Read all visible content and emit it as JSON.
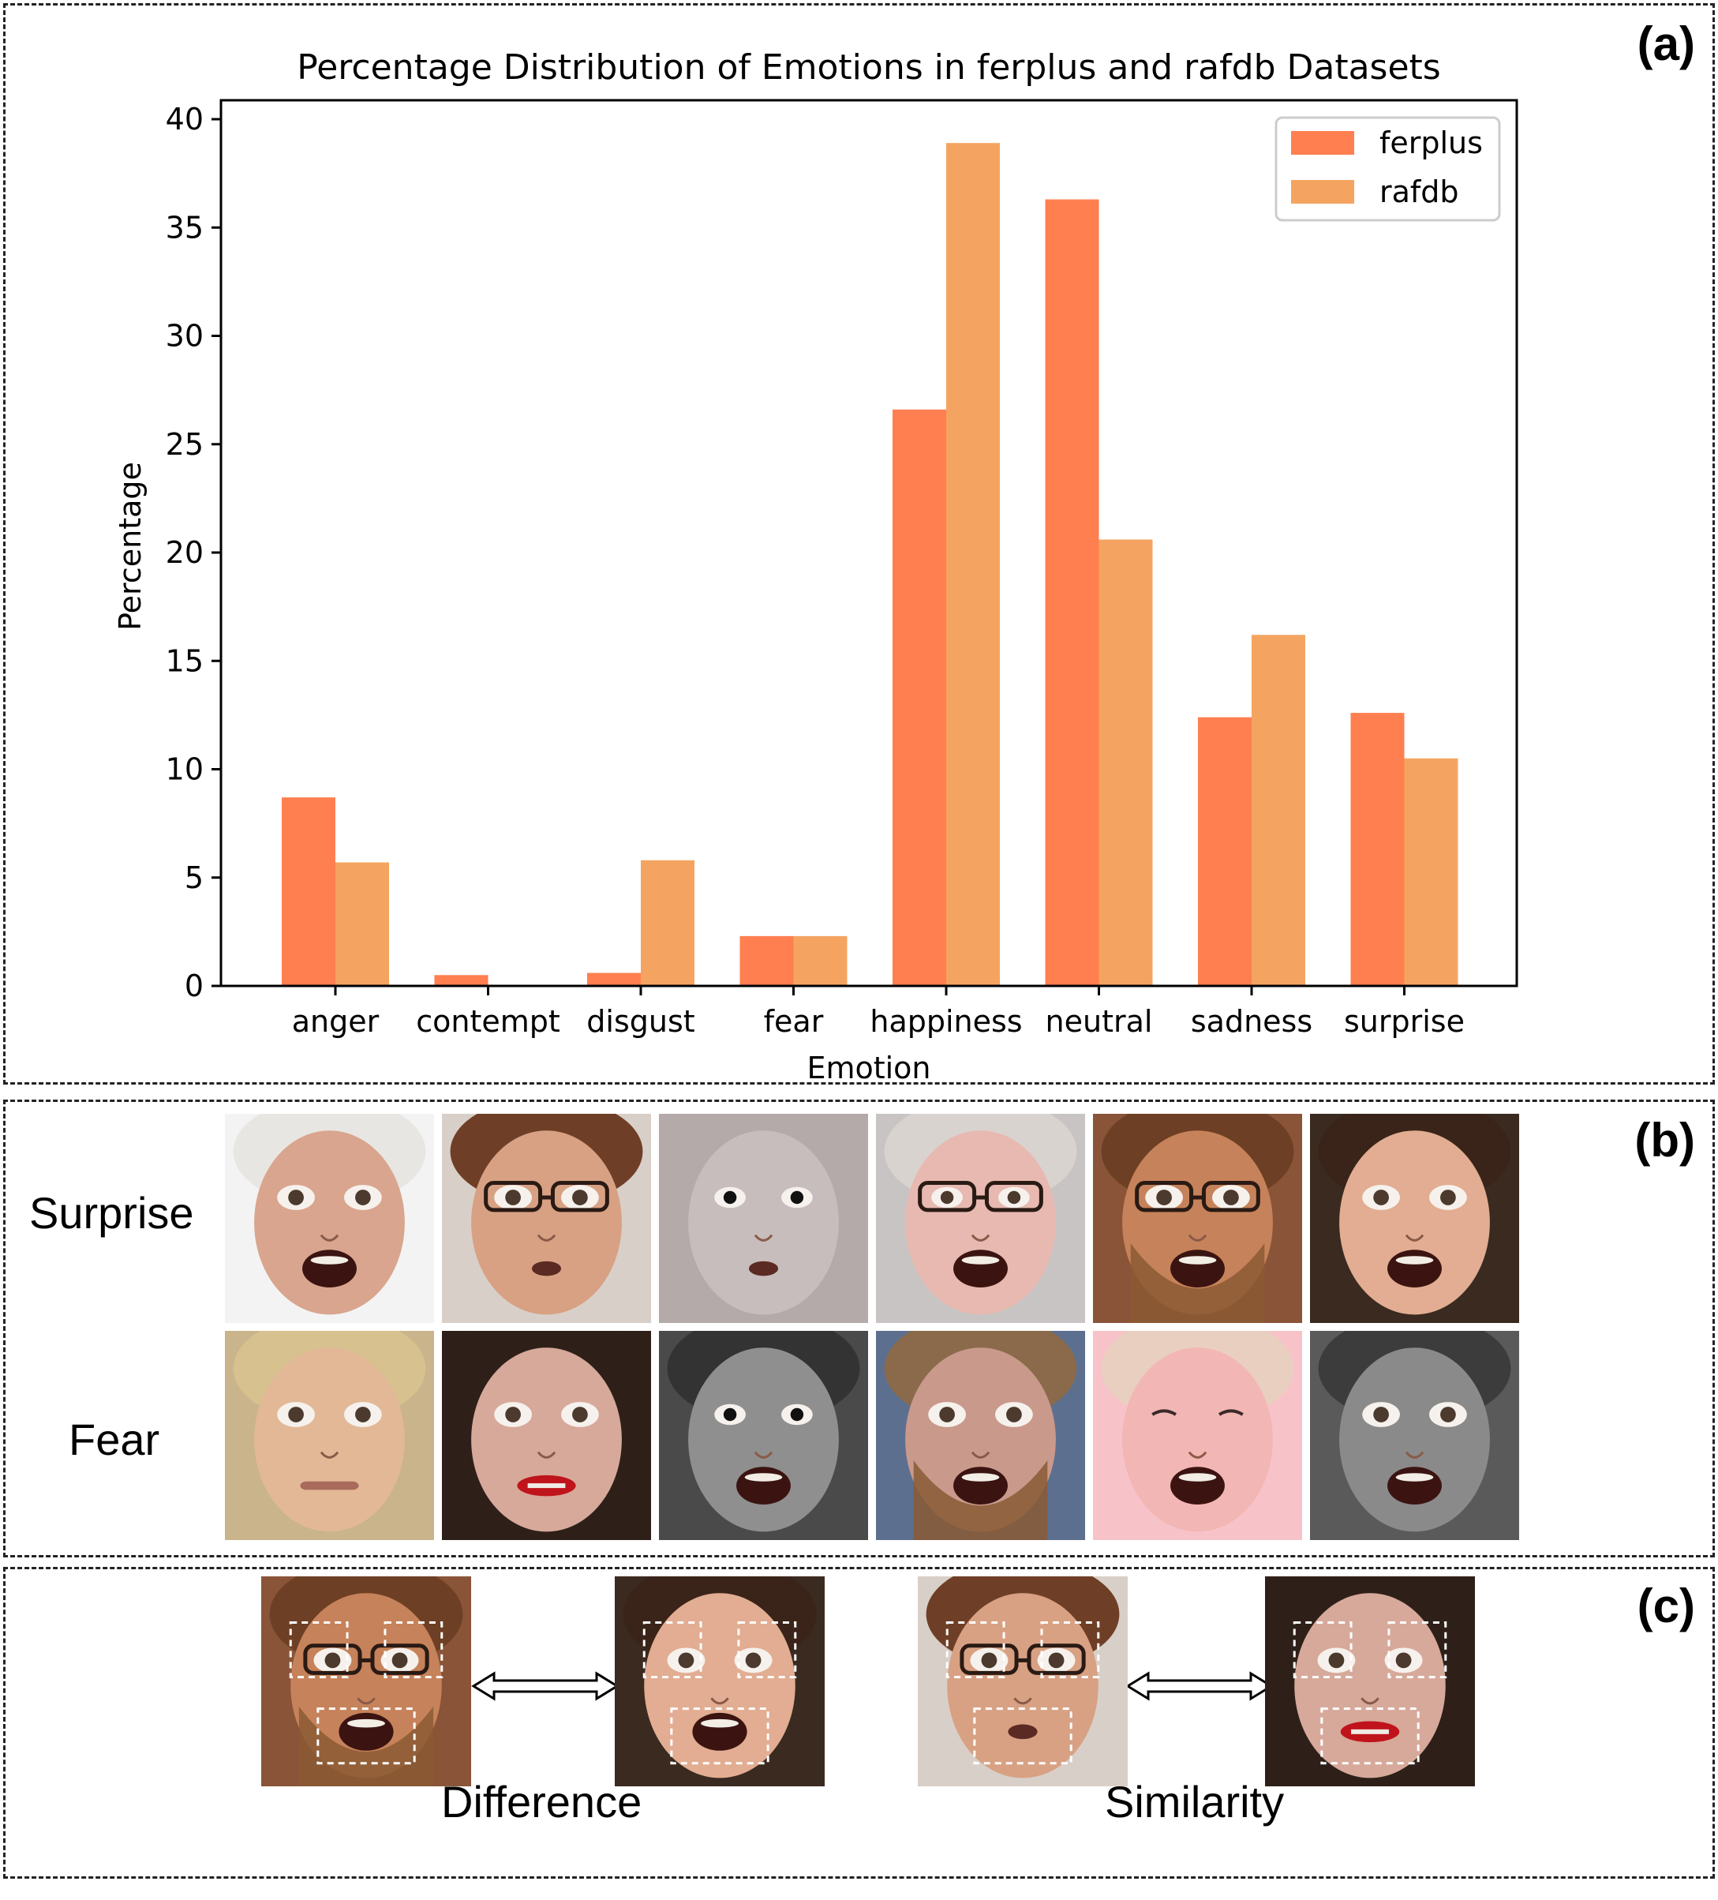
{
  "panels": {
    "a": {
      "label": "(a)"
    },
    "b": {
      "label": "(b)",
      "rows": [
        "Surprise",
        "Fear"
      ]
    },
    "c": {
      "label": "(c)",
      "captions": [
        "Difference",
        "Similarity"
      ]
    }
  },
  "chart_data": {
    "type": "bar",
    "title": "Percentage Distribution of Emotions in ferplus and rafdb Datasets",
    "xlabel": "Emotion",
    "ylabel": "Percentage",
    "ylim": [
      0,
      41
    ],
    "yticks": [
      0,
      5,
      10,
      15,
      20,
      25,
      30,
      35,
      40
    ],
    "categories": [
      "anger",
      "contempt",
      "disgust",
      "fear",
      "happiness",
      "neutral",
      "sadness",
      "surprise"
    ],
    "series": [
      {
        "name": "ferplus",
        "color": "#ff7f50",
        "values": [
          8.7,
          0.5,
          0.6,
          2.3,
          26.6,
          36.3,
          12.4,
          12.6
        ]
      },
      {
        "name": "rafdb",
        "color": "#f4a460",
        "values": [
          5.7,
          0.0,
          5.8,
          2.3,
          38.9,
          20.6,
          16.2,
          10.5
        ]
      }
    ],
    "legend": "top-right",
    "grid": false
  },
  "faces": {
    "surprise_row": [
      {
        "skin": "#d9a58e",
        "bg": "#f3f3f3",
        "hair": "#e8e6e2",
        "mouth": "open",
        "eyes": "wide",
        "glasses": false,
        "beard": false
      },
      {
        "skin": "#d8a183",
        "bg": "#d8cfc8",
        "hair": "#6e3f26",
        "mouth": "small",
        "eyes": "wide",
        "glasses": true,
        "beard": false
      },
      {
        "skin": "#c7bdbd",
        "bg": "#b4aaaa",
        "hair": "#b4aaaa",
        "mouth": "small",
        "eyes": "dark",
        "glasses": false,
        "beard": false
      },
      {
        "skin": "#e7b9b0",
        "bg": "#c9c4c4",
        "hair": "#d9d3cf",
        "mouth": "open",
        "eyes": "normal",
        "glasses": true,
        "beard": false
      },
      {
        "skin": "#c6825a",
        "bg": "#8a5438",
        "hair": "#6d3f24",
        "mouth": "open",
        "eyes": "wide",
        "glasses": true,
        "beard": true
      },
      {
        "skin": "#e2ad92",
        "bg": "#3a2a20",
        "hair": "#3a2419",
        "mouth": "open",
        "eyes": "wide",
        "glasses": false,
        "beard": false
      }
    ],
    "fear_row": [
      {
        "skin": "#e2b896",
        "bg": "#c9b48c",
        "hair": "#d6c18f",
        "mouth": "tight",
        "eyes": "wide",
        "glasses": false,
        "beard": false
      },
      {
        "skin": "#d7a99a",
        "bg": "#2e2019",
        "hair": "#2e2019",
        "mouth": "red",
        "eyes": "wide",
        "glasses": false,
        "beard": false
      },
      {
        "skin": "#8f8f8f",
        "bg": "#4a4a4a",
        "hair": "#333333",
        "mouth": "open",
        "eyes": "dark",
        "glasses": false,
        "beard": false
      },
      {
        "skin": "#c9998c",
        "bg": "#5d6f8f",
        "hair": "#8a6a4a",
        "mouth": "open",
        "eyes": "wide",
        "glasses": false,
        "beard": true
      },
      {
        "skin": "#f2b6b4",
        "bg": "#f8c3c8",
        "hair": "#e9cfc0",
        "mouth": "open",
        "eyes": "squint",
        "glasses": false,
        "beard": false
      },
      {
        "skin": "#8a8a8a",
        "bg": "#5a5a5a",
        "hair": "#3c3c3c",
        "mouth": "open",
        "eyes": "wide",
        "glasses": false,
        "beard": false
      }
    ],
    "comparison": [
      {
        "skin": "#c6825a",
        "bg": "#8a5438",
        "hair": "#6d3f24",
        "mouth": "open",
        "eyes": "wide",
        "glasses": true,
        "beard": true
      },
      {
        "skin": "#e2ad92",
        "bg": "#3a2a20",
        "hair": "#3a2419",
        "mouth": "open",
        "eyes": "wide",
        "glasses": false,
        "beard": false
      },
      {
        "skin": "#d8a183",
        "bg": "#d8cfc8",
        "hair": "#6e3f26",
        "mouth": "small",
        "eyes": "wide",
        "glasses": true,
        "beard": false
      },
      {
        "skin": "#d7a99a",
        "bg": "#2e2019",
        "hair": "#2e2019",
        "mouth": "red",
        "eyes": "wide",
        "glasses": false,
        "beard": false
      }
    ]
  }
}
